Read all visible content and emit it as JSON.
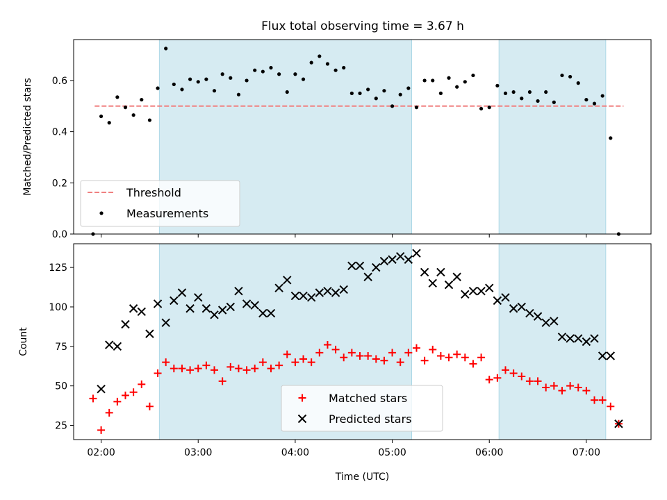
{
  "title": "Flux total observing time = 3.67 h",
  "colors": {
    "observing_span": "#add8e6",
    "threshold": "#f08080",
    "measurements": "#000000",
    "matched": "#ff0000",
    "predicted": "#000000"
  },
  "chart_data": [
    {
      "type": "scatter",
      "ylabel": "Matched/Predicted stars",
      "xlim": [
        "01:43",
        "07:40"
      ],
      "ylim": [
        0,
        0.76
      ],
      "yticks": [
        0.0,
        0.2,
        0.4,
        0.6
      ],
      "ytick_labels": [
        "0.0",
        "0.2",
        "0.4",
        "0.6"
      ],
      "legend_placement": "lower-left",
      "shaded_spans": [
        [
          "02:36",
          "05:12"
        ],
        [
          "06:06",
          "07:12"
        ]
      ],
      "threshold": {
        "name": "Threshold",
        "value": 0.5,
        "x_range": [
          "01:56",
          "07:23"
        ],
        "style": "dashed"
      },
      "series": [
        {
          "name": "Measurements",
          "x": [
            "01:55",
            "02:00",
            "02:05",
            "02:10",
            "02:15",
            "02:20",
            "02:25",
            "02:30",
            "02:35",
            "02:40",
            "02:45",
            "02:50",
            "02:55",
            "03:00",
            "03:05",
            "03:10",
            "03:15",
            "03:20",
            "03:25",
            "03:30",
            "03:35",
            "03:40",
            "03:45",
            "03:50",
            "03:55",
            "04:00",
            "04:05",
            "04:10",
            "04:15",
            "04:20",
            "04:25",
            "04:30",
            "04:35",
            "04:40",
            "04:45",
            "04:50",
            "04:55",
            "05:00",
            "05:05",
            "05:10",
            "05:15",
            "05:20",
            "05:25",
            "05:30",
            "05:35",
            "05:40",
            "05:45",
            "05:50",
            "05:55",
            "06:00",
            "06:05",
            "06:10",
            "06:15",
            "06:20",
            "06:25",
            "06:30",
            "06:35",
            "06:40",
            "06:45",
            "06:50",
            "06:55",
            "07:00",
            "07:05",
            "07:10",
            "07:15",
            "07:20"
          ],
          "y": [
            0.0,
            0.46,
            0.435,
            0.535,
            0.495,
            0.465,
            0.525,
            0.445,
            0.57,
            0.725,
            0.585,
            0.565,
            0.605,
            0.595,
            0.605,
            0.56,
            0.625,
            0.61,
            0.545,
            0.6,
            0.64,
            0.635,
            0.65,
            0.625,
            0.555,
            0.625,
            0.605,
            0.67,
            0.695,
            0.665,
            0.64,
            0.65,
            0.55,
            0.55,
            0.565,
            0.53,
            0.56,
            0.5,
            0.545,
            0.57,
            0.495,
            0.6,
            0.6,
            0.55,
            0.61,
            0.575,
            0.595,
            0.62,
            0.49,
            0.495,
            0.58,
            0.55,
            0.555,
            0.53,
            0.555,
            0.52,
            0.555,
            0.515,
            0.62,
            0.615,
            0.59,
            0.525,
            0.51,
            0.54,
            0.375,
            0.0
          ]
        }
      ]
    },
    {
      "type": "scatter",
      "xlabel": "Time (UTC)",
      "ylabel": "Count",
      "xlim": [
        "01:43",
        "07:40"
      ],
      "ylim": [
        16,
        140
      ],
      "xticks": [
        "02:00",
        "03:00",
        "04:00",
        "05:00",
        "06:00",
        "07:00"
      ],
      "yticks": [
        25,
        50,
        75,
        100,
        125
      ],
      "legend_placement": "lower-center",
      "shaded_spans": [
        [
          "02:36",
          "05:12"
        ],
        [
          "06:06",
          "07:12"
        ]
      ],
      "series": [
        {
          "name": "Matched stars",
          "marker": "plus",
          "x": [
            "01:55",
            "02:00",
            "02:05",
            "02:10",
            "02:15",
            "02:20",
            "02:25",
            "02:30",
            "02:35",
            "02:40",
            "02:45",
            "02:50",
            "02:55",
            "03:00",
            "03:05",
            "03:10",
            "03:15",
            "03:20",
            "03:25",
            "03:30",
            "03:35",
            "03:40",
            "03:45",
            "03:50",
            "03:55",
            "04:00",
            "04:05",
            "04:10",
            "04:15",
            "04:20",
            "04:25",
            "04:30",
            "04:35",
            "04:40",
            "04:45",
            "04:50",
            "04:55",
            "05:00",
            "05:05",
            "05:10",
            "05:15",
            "05:20",
            "05:25",
            "05:30",
            "05:35",
            "05:40",
            "05:45",
            "05:50",
            "05:55",
            "06:00",
            "06:05",
            "06:10",
            "06:15",
            "06:20",
            "06:25",
            "06:30",
            "06:35",
            "06:40",
            "06:45",
            "06:50",
            "06:55",
            "07:00",
            "07:05",
            "07:10",
            "07:15",
            "07:20"
          ],
          "y": [
            42,
            22,
            33,
            40,
            44,
            46,
            51,
            37,
            58,
            65,
            61,
            61,
            60,
            61,
            63,
            60,
            53,
            62,
            61,
            60,
            61,
            65,
            61,
            63,
            70,
            65,
            67,
            65,
            71,
            76,
            73,
            68,
            71,
            69,
            69,
            67,
            66,
            71,
            65,
            71,
            74,
            66,
            73,
            69,
            68,
            70,
            68,
            64,
            68,
            54,
            55,
            60,
            58,
            56,
            53,
            53,
            49,
            50,
            47,
            50,
            49,
            47,
            41,
            41,
            37,
            26
          ]
        },
        {
          "name": "Predicted stars",
          "marker": "x",
          "x": [
            "02:00",
            "02:05",
            "02:10",
            "02:15",
            "02:20",
            "02:25",
            "02:30",
            "02:35",
            "02:40",
            "02:45",
            "02:50",
            "02:55",
            "03:00",
            "03:05",
            "03:10",
            "03:15",
            "03:20",
            "03:25",
            "03:30",
            "03:35",
            "03:40",
            "03:45",
            "03:50",
            "03:55",
            "04:00",
            "04:05",
            "04:10",
            "04:15",
            "04:20",
            "04:25",
            "04:30",
            "04:35",
            "04:40",
            "04:45",
            "04:50",
            "04:55",
            "05:00",
            "05:05",
            "05:10",
            "05:15",
            "05:20",
            "05:25",
            "05:30",
            "05:35",
            "05:40",
            "05:45",
            "05:50",
            "05:55",
            "06:00",
            "06:05",
            "06:10",
            "06:15",
            "06:20",
            "06:25",
            "06:30",
            "06:35",
            "06:40",
            "06:45",
            "06:50",
            "06:55",
            "07:00",
            "07:05",
            "07:10",
            "07:15",
            "07:20"
          ],
          "y": [
            48,
            76,
            75,
            89,
            99,
            97,
            83,
            102,
            90,
            104,
            109,
            99,
            106,
            99,
            95,
            98,
            100,
            110,
            102,
            101,
            96,
            96,
            112,
            117,
            107,
            107,
            106,
            109,
            110,
            109,
            111,
            126,
            126,
            119,
            125,
            129,
            130,
            132,
            130,
            134,
            122,
            115,
            122,
            114,
            119,
            108,
            110,
            110,
            112,
            104,
            106,
            99,
            100,
            96,
            94,
            90,
            91,
            81,
            80,
            80,
            78,
            80,
            69,
            69,
            26
          ]
        }
      ]
    }
  ]
}
